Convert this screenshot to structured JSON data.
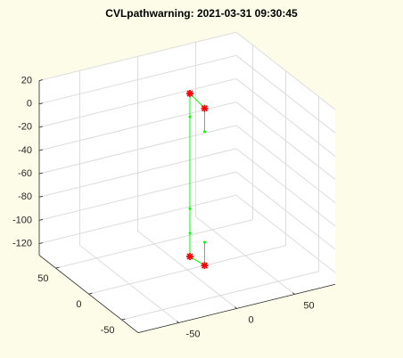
{
  "chart_data": {
    "type": "line3d",
    "title": "CVLpathwarning: 2021-03-31 09:30:45",
    "xlim": [
      -85,
      85
    ],
    "ylim": [
      -75,
      75
    ],
    "zlim": [
      -130,
      20
    ],
    "xticks": [
      -50,
      0,
      50
    ],
    "yticks": [
      -50,
      0,
      50
    ],
    "zticks": [
      -120,
      -100,
      -80,
      -60,
      -40,
      -20,
      0,
      20
    ],
    "grid": true,
    "series": [
      {
        "color": "#00ff00",
        "x": [
          8,
          8,
          8,
          8,
          8
        ],
        "y": [
          10,
          10,
          10,
          10,
          10
        ],
        "z": [
          15,
          -5,
          -84,
          -105,
          -125
        ]
      },
      {
        "color": "#00ff00",
        "x": [
          8,
          15,
          15
        ],
        "y": [
          10,
          0,
          0
        ],
        "z": [
          15,
          5,
          -15
        ]
      },
      {
        "color": "#00ff00",
        "x": [
          8,
          15,
          15
        ],
        "y": [
          10,
          0,
          0
        ],
        "z": [
          -125,
          -130,
          -110
        ]
      }
    ],
    "markers": {
      "color": "#ff0000",
      "x": [
        8,
        15,
        8,
        15
      ],
      "y": [
        10,
        0,
        10,
        0
      ],
      "z": [
        15,
        5,
        -125,
        -130
      ]
    }
  }
}
